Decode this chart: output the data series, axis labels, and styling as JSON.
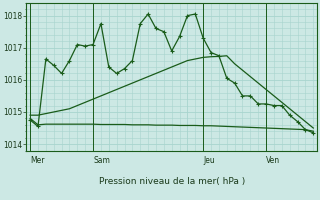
{
  "background_color": "#cce8e4",
  "grid_color": "#a8d4ce",
  "line_color": "#1a5c1a",
  "title": "Pression niveau de la mer( hPa )",
  "ylim": [
    1013.8,
    1018.4
  ],
  "yticks": [
    1014,
    1015,
    1016,
    1017,
    1018
  ],
  "day_labels": [
    "Mer",
    "Sam",
    "Jeu",
    "Ven"
  ],
  "day_positions": [
    0,
    8,
    22,
    30
  ],
  "vline_positions": [
    0,
    8,
    22,
    30
  ],
  "num_points": 37,
  "series1": [
    1014.75,
    1014.55,
    1016.65,
    1016.45,
    1016.2,
    1016.6,
    1017.1,
    1017.05,
    1017.1,
    1017.75,
    1016.4,
    1016.2,
    1016.35,
    1016.6,
    1017.75,
    1018.05,
    1017.6,
    1017.5,
    1016.9,
    1017.35,
    1018.0,
    1018.05,
    1017.3,
    1016.85,
    1016.75,
    1016.05,
    1015.9,
    1015.5,
    1015.5,
    1015.25,
    1015.25,
    1015.2,
    1015.2,
    1014.9,
    1014.7,
    1014.45,
    1014.35
  ],
  "series2": [
    1014.9,
    1014.9,
    1014.95,
    1015.0,
    1015.05,
    1015.1,
    1015.2,
    1015.3,
    1015.4,
    1015.5,
    1015.6,
    1015.7,
    1015.8,
    1015.9,
    1016.0,
    1016.1,
    1016.2,
    1016.3,
    1016.4,
    1016.5,
    1016.6,
    1016.65,
    1016.7,
    1016.72,
    1016.73,
    1016.75,
    1016.5,
    1016.3,
    1016.1,
    1015.9,
    1015.7,
    1015.5,
    1015.3,
    1015.1,
    1014.9,
    1014.7,
    1014.5
  ],
  "series3": [
    1014.8,
    1014.6,
    1014.62,
    1014.62,
    1014.62,
    1014.62,
    1014.62,
    1014.62,
    1014.62,
    1014.61,
    1014.61,
    1014.61,
    1014.61,
    1014.6,
    1014.6,
    1014.6,
    1014.59,
    1014.59,
    1014.59,
    1014.58,
    1014.58,
    1014.58,
    1014.57,
    1014.57,
    1014.56,
    1014.55,
    1014.54,
    1014.53,
    1014.52,
    1014.51,
    1014.5,
    1014.49,
    1014.48,
    1014.47,
    1014.46,
    1014.45,
    1014.4
  ]
}
